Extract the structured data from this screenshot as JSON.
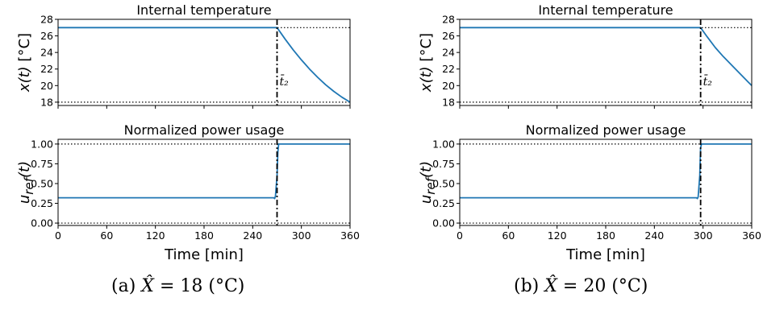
{
  "chart_data": [
    {
      "panel": "a",
      "caption": {
        "prefix": "(a)",
        "symbol": "X̂",
        "value": "= 18",
        "unit": "(°C)"
      },
      "xlabel": "Time [min]",
      "xlim": [
        0,
        360
      ],
      "xticks": [
        "0",
        "60",
        "120",
        "180",
        "240",
        "300",
        "360"
      ],
      "charts": [
        {
          "type": "line",
          "title": "Internal temperature",
          "ylabel": "x(t) [°C]",
          "ylim": [
            17.6,
            28
          ],
          "yticks": [
            "18",
            "20",
            "22",
            "24",
            "26",
            "28"
          ],
          "hlines": [
            27,
            18
          ],
          "vline": {
            "x": 270,
            "label": "t̄₂"
          },
          "series": [
            {
              "color": "#1f77b4",
              "x": [
                0,
                270,
                280,
                290,
                300,
                310,
                320,
                330,
                340,
                350,
                360
              ],
              "y": [
                27,
                27,
                25.6,
                24.3,
                23.1,
                22.0,
                21.0,
                20.1,
                19.3,
                18.6,
                18.0
              ]
            }
          ]
        },
        {
          "type": "line",
          "title": "Normalized power usage",
          "ylabel": "u_ref(t)",
          "ylim": [
            -0.03,
            1.06
          ],
          "yticks": [
            "0.00",
            "0.25",
            "0.50",
            "0.75",
            "1.00"
          ],
          "hlines": [
            1.0,
            0.0
          ],
          "vline": {
            "x": 270
          },
          "series": [
            {
              "color": "#1f77b4",
              "x": [
                0,
                266,
                267,
                268,
                270,
                271,
                272,
                360
              ],
              "y": [
                0.32,
                0.32,
                0.31,
                0.34,
                0.6,
                0.9,
                1.0,
                1.0
              ]
            }
          ]
        }
      ]
    },
    {
      "panel": "b",
      "caption": {
        "prefix": "(b)",
        "symbol": "X̂",
        "value": "= 20",
        "unit": "(°C)"
      },
      "xlabel": "Time [min]",
      "xlim": [
        0,
        360
      ],
      "xticks": [
        "0",
        "60",
        "120",
        "180",
        "240",
        "300",
        "360"
      ],
      "charts": [
        {
          "type": "line",
          "title": "Internal temperature",
          "ylabel": "x(t) [°C]",
          "ylim": [
            17.6,
            28
          ],
          "yticks": [
            "18",
            "20",
            "22",
            "24",
            "26",
            "28"
          ],
          "hlines": [
            27,
            18
          ],
          "vline": {
            "x": 297,
            "label": "t̄₂"
          },
          "series": [
            {
              "color": "#1f77b4",
              "x": [
                0,
                297,
                305,
                315,
                325,
                335,
                345,
                355,
                360
              ],
              "y": [
                27,
                27,
                25.9,
                24.6,
                23.5,
                22.5,
                21.5,
                20.5,
                20.0
              ]
            }
          ]
        },
        {
          "type": "line",
          "title": "Normalized power usage",
          "ylabel": "u_ref(t)",
          "ylim": [
            -0.03,
            1.06
          ],
          "yticks": [
            "0.00",
            "0.25",
            "0.50",
            "0.75",
            "1.00"
          ],
          "hlines": [
            1.0,
            0.0
          ],
          "vline": {
            "x": 297
          },
          "series": [
            {
              "color": "#1f77b4",
              "x": [
                0,
                292,
                293,
                294,
                296,
                297,
                298,
                360
              ],
              "y": [
                0.32,
                0.32,
                0.31,
                0.33,
                0.6,
                0.95,
                1.0,
                1.0
              ]
            }
          ]
        }
      ]
    }
  ]
}
